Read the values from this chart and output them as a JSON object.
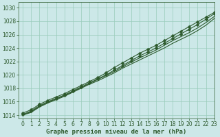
{
  "title": "Graphe pression niveau de la mer (hPa)",
  "bg_color": "#cce8e8",
  "grid_color": "#99ccbb",
  "line_color": "#2d5a2d",
  "xlim": [
    -0.5,
    23
  ],
  "ylim": [
    1013.5,
    1030.8
  ],
  "yticks": [
    1014,
    1016,
    1018,
    1020,
    1022,
    1024,
    1026,
    1028,
    1030
  ],
  "xticks": [
    0,
    1,
    2,
    3,
    4,
    5,
    6,
    7,
    8,
    9,
    10,
    11,
    12,
    13,
    14,
    15,
    16,
    17,
    18,
    19,
    20,
    21,
    22,
    23
  ],
  "series": [
    {
      "y": [
        1014.3,
        1014.8,
        1015.6,
        1016.2,
        1016.7,
        1017.2,
        1017.8,
        1018.4,
        1019.0,
        1019.6,
        1020.3,
        1021.1,
        1021.8,
        1022.5,
        1023.2,
        1023.8,
        1024.4,
        1025.1,
        1025.8,
        1026.5,
        1027.2,
        1027.9,
        1028.6,
        1029.3
      ],
      "marker": "D",
      "markersize": 2.5,
      "linewidth": 0.8
    },
    {
      "y": [
        1014.1,
        1014.6,
        1015.4,
        1016.0,
        1016.5,
        1017.0,
        1017.6,
        1018.2,
        1018.8,
        1019.4,
        1020.0,
        1020.7,
        1021.4,
        1022.1,
        1022.8,
        1023.4,
        1024.0,
        1024.7,
        1025.4,
        1026.1,
        1026.8,
        1027.5,
        1028.3,
        1029.1
      ],
      "marker": "D",
      "markersize": 2.5,
      "linewidth": 0.8
    },
    {
      "y": [
        1014.0,
        1014.5,
        1015.3,
        1015.9,
        1016.4,
        1016.9,
        1017.5,
        1018.1,
        1018.7,
        1019.3,
        1019.9,
        1020.5,
        1021.2,
        1021.9,
        1022.5,
        1023.1,
        1023.7,
        1024.4,
        1025.1,
        1025.7,
        1026.3,
        1027.0,
        1027.8,
        1028.7
      ],
      "marker": null,
      "markersize": 0,
      "linewidth": 0.8
    },
    {
      "y": [
        1014.0,
        1014.4,
        1015.2,
        1015.8,
        1016.3,
        1016.8,
        1017.4,
        1018.0,
        1018.6,
        1019.1,
        1019.7,
        1020.3,
        1021.0,
        1021.6,
        1022.2,
        1022.8,
        1023.4,
        1024.0,
        1024.7,
        1025.3,
        1025.9,
        1026.6,
        1027.4,
        1028.4
      ],
      "marker": null,
      "markersize": 0,
      "linewidth": 0.8
    }
  ],
  "tick_fontsize": 5.5,
  "title_fontsize": 6.5
}
